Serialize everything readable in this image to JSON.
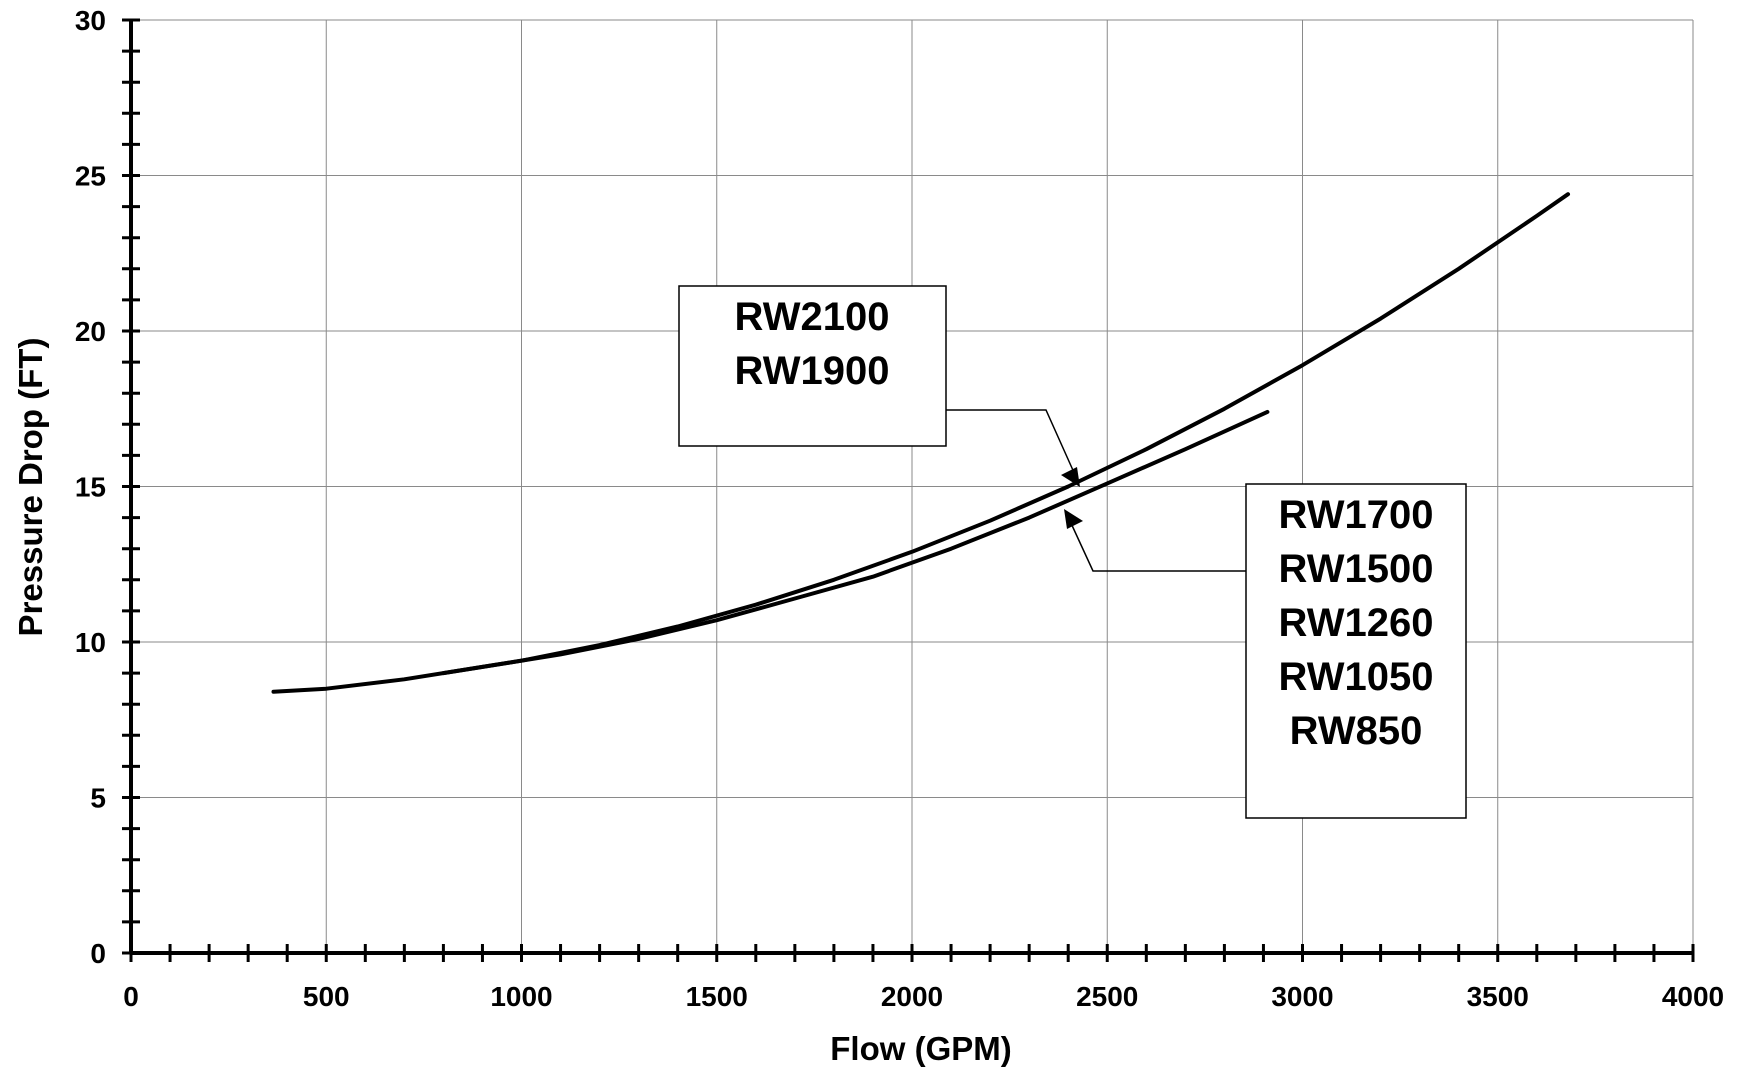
{
  "chart_data": {
    "type": "line",
    "xlabel": "Flow (GPM)",
    "ylabel": "Pressure Drop (FT)",
    "xlim": [
      0,
      4000
    ],
    "ylim": [
      0,
      30
    ],
    "x_ticks": [
      0,
      500,
      1000,
      1500,
      2000,
      2500,
      3000,
      3500,
      4000
    ],
    "y_ticks": [
      0,
      5,
      10,
      15,
      20,
      25,
      30
    ],
    "x_tick_labels": [
      "0",
      "500",
      "1000",
      "1500",
      "2000",
      "2500",
      "3000",
      "3500",
      "4000"
    ],
    "y_tick_labels": [
      "0",
      "5",
      "10",
      "15",
      "20",
      "25",
      "30"
    ],
    "grid": true,
    "series": [
      {
        "x": [
          800,
          1000,
          1200,
          1400,
          1600,
          1800,
          2000,
          2200,
          2400,
          2600,
          2800,
          3000,
          3200,
          3400,
          3600,
          3680
        ],
        "y": [
          9.0,
          9.4,
          9.9,
          10.5,
          11.2,
          12.0,
          12.9,
          13.9,
          15.0,
          16.2,
          17.5,
          18.9,
          20.4,
          22.0,
          23.7,
          24.4
        ]
      },
      {
        "x": [
          365,
          500,
          700,
          900,
          1100,
          1300,
          1500,
          1700,
          1900,
          2100,
          2300,
          2500,
          2700,
          2910
        ],
        "y": [
          8.4,
          8.5,
          8.8,
          9.2,
          9.6,
          10.1,
          10.7,
          11.4,
          12.1,
          13.0,
          14.0,
          15.1,
          16.2,
          17.4
        ]
      }
    ],
    "annotations": [
      {
        "lines": [
          "RW2100",
          "RW1900"
        ]
      },
      {
        "lines": [
          "RW1700",
          "RW1500",
          "RW1260",
          "RW1050",
          "RW850"
        ]
      }
    ]
  }
}
